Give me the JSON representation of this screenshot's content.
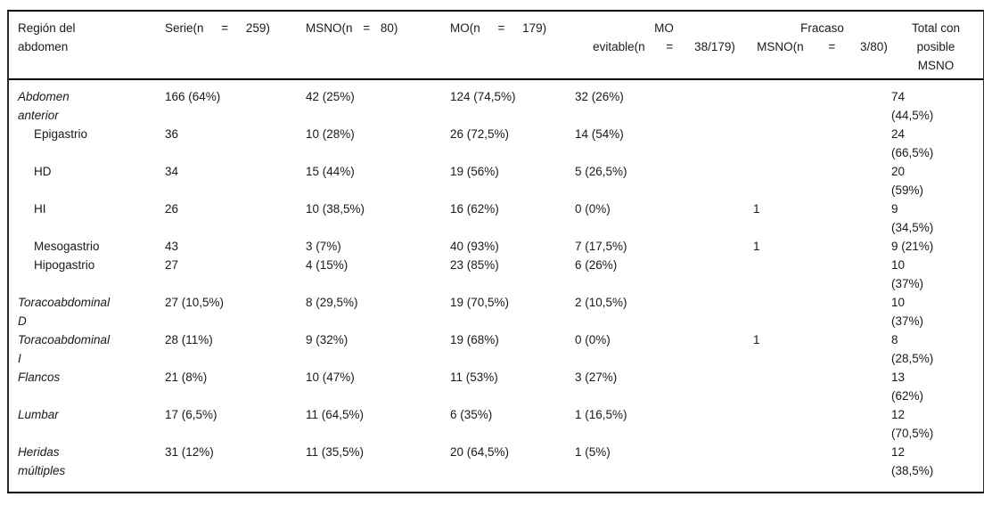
{
  "colors": {
    "text": "#1a1a1a",
    "border": "#000000",
    "background": "#ffffff"
  },
  "table": {
    "header": {
      "region": "Región del\nabdomen",
      "serie": "Serie(n = 259)",
      "msno": "MSNO(n = 80)",
      "mo": "MO(n = 179)",
      "mo_evitable": "MO\nevitable(n = 38/179)",
      "fracaso_msno": "Fracaso\nMSNO(n = 3/80)",
      "total": "Total con\nposible\nMSNO"
    },
    "rows": [
      {
        "region": "Abdomen\nanterior",
        "serie": "166 (64%)",
        "msno": "42 (25%)",
        "mo": "124 (74,5%)",
        "mo_evitable": "32 (26%)",
        "fracaso_msno": "",
        "total": "74\n(44,5%)"
      },
      {
        "region": "Epigastrio",
        "serie": "36",
        "msno": "10 (28%)",
        "mo": "26 (72,5%)",
        "mo_evitable": "14 (54%)",
        "fracaso_msno": "",
        "total": "24\n(66,5%)"
      },
      {
        "region": "HD",
        "serie": "34",
        "msno": "15 (44%)",
        "mo": "19 (56%)",
        "mo_evitable": "5 (26,5%)",
        "fracaso_msno": "",
        "total": "20\n(59%)"
      },
      {
        "region": "HI",
        "serie": "26",
        "msno": "10 (38,5%)",
        "mo": "16 (62%)",
        "mo_evitable": "0 (0%)",
        "fracaso_msno": "1",
        "total": "9\n(34,5%)"
      },
      {
        "region": "Mesogastrio",
        "serie": "43",
        "msno": "3 (7%)",
        "mo": "40 (93%)",
        "mo_evitable": "7 (17,5%)",
        "fracaso_msno": "1",
        "total": "9 (21%)"
      },
      {
        "region": "Hipogastrio",
        "serie": "27",
        "msno": "4 (15%)",
        "mo": "23 (85%)",
        "mo_evitable": "6 (26%)",
        "fracaso_msno": "",
        "total": "10\n(37%)"
      },
      {
        "region": "Toracoabdominal\nD",
        "serie": "27 (10,5%)",
        "msno": "8 (29,5%)",
        "mo": "19 (70,5%)",
        "mo_evitable": "2 (10,5%)",
        "fracaso_msno": "",
        "total": "10\n(37%)"
      },
      {
        "region": "Toracoabdominal\nI",
        "serie": "28 (11%)",
        "msno": "9 (32%)",
        "mo": "19 (68%)",
        "mo_evitable": "0 (0%)",
        "fracaso_msno": "1",
        "total": "8\n(28,5%)"
      },
      {
        "region": "Flancos",
        "serie": "21 (8%)",
        "msno": "10 (47%)",
        "mo": "11 (53%)",
        "mo_evitable": "3 (27%)",
        "fracaso_msno": "",
        "total": "13\n(62%)"
      },
      {
        "region": "Lumbar",
        "serie": "17 (6,5%)",
        "msno": "11 (64,5%)",
        "mo": "6 (35%)",
        "mo_evitable": "1 (16,5%)",
        "fracaso_msno": "",
        "total": "12\n(70,5%)"
      },
      {
        "region": "Heridas\nmúltiples",
        "serie": "31 (12%)",
        "msno": "11 (35,5%)",
        "mo": "20 (64,5%)",
        "mo_evitable": "1 (5%)",
        "fracaso_msno": "",
        "total": "12\n(38,5%)"
      }
    ]
  }
}
